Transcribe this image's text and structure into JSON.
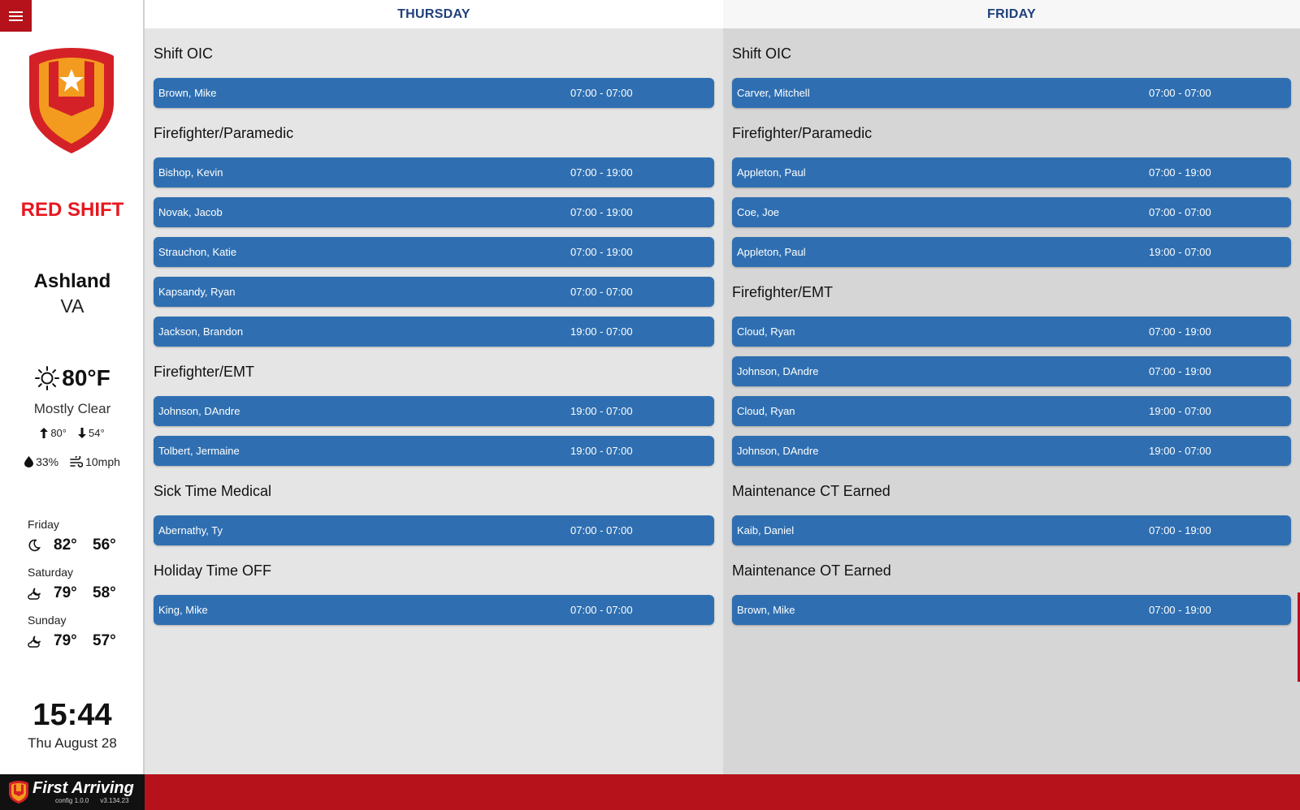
{
  "sidebar": {
    "shift_name": "RED SHIFT",
    "city": "Ashland",
    "state": "VA",
    "weather": {
      "icon": "sun-icon",
      "temp": "80°F",
      "condition": "Mostly Clear",
      "high": "80°",
      "low": "54°",
      "humidity": "33%",
      "wind": "10mph"
    },
    "forecast": [
      {
        "day": "Friday",
        "icon": "moon-icon",
        "high": "82°",
        "low": "56°"
      },
      {
        "day": "Saturday",
        "icon": "cloud-moon-icon",
        "high": "79°",
        "low": "58°"
      },
      {
        "day": "Sunday",
        "icon": "cloud-moon-icon",
        "high": "79°",
        "low": "57°"
      }
    ],
    "time": "15:44",
    "date": "Thu August 28"
  },
  "columns": [
    {
      "day": "THURSDAY",
      "groups": [
        {
          "title": "Shift OIC",
          "shifts": [
            {
              "name": "Brown, Mike",
              "time": "07:00 - 07:00"
            }
          ]
        },
        {
          "title": "Firefighter/Paramedic",
          "shifts": [
            {
              "name": "Bishop, Kevin",
              "time": "07:00 - 19:00"
            },
            {
              "name": "Novak, Jacob",
              "time": "07:00 - 19:00"
            },
            {
              "name": "Strauchon, Katie",
              "time": "07:00 - 19:00"
            },
            {
              "name": "Kapsandy, Ryan",
              "time": "07:00 - 07:00"
            },
            {
              "name": "Jackson, Brandon",
              "time": "19:00 - 07:00"
            }
          ]
        },
        {
          "title": "Firefighter/EMT",
          "shifts": [
            {
              "name": "Johnson, DAndre",
              "time": "19:00 - 07:00"
            },
            {
              "name": "Tolbert, Jermaine",
              "time": "19:00 - 07:00"
            }
          ]
        },
        {
          "title": "Sick Time Medical",
          "shifts": [
            {
              "name": "Abernathy, Ty",
              "time": "07:00 - 07:00"
            }
          ]
        },
        {
          "title": "Holiday Time OFF",
          "shifts": [
            {
              "name": "King, Mike",
              "time": "07:00 - 07:00"
            }
          ]
        }
      ]
    },
    {
      "day": "FRIDAY",
      "groups": [
        {
          "title": "Shift OIC",
          "shifts": [
            {
              "name": "Carver, Mitchell",
              "time": "07:00 - 07:00"
            }
          ]
        },
        {
          "title": "Firefighter/Paramedic",
          "shifts": [
            {
              "name": "Appleton, Paul",
              "time": "07:00 - 19:00"
            },
            {
              "name": "Coe, Joe",
              "time": "07:00 - 07:00"
            },
            {
              "name": "Appleton, Paul",
              "time": "19:00 - 07:00"
            }
          ]
        },
        {
          "title": "Firefighter/EMT",
          "shifts": [
            {
              "name": "Cloud, Ryan",
              "time": "07:00 - 19:00"
            },
            {
              "name": "Johnson, DAndre",
              "time": "07:00 - 19:00"
            },
            {
              "name": "Cloud, Ryan",
              "time": "19:00 - 07:00"
            },
            {
              "name": "Johnson, DAndre",
              "time": "19:00 - 07:00"
            }
          ]
        },
        {
          "title": "Maintenance CT Earned",
          "shifts": [
            {
              "name": "Kaib, Daniel",
              "time": "07:00 - 19:00"
            }
          ]
        },
        {
          "title": "Maintenance OT Earned",
          "shifts": [
            {
              "name": "Brown, Mike",
              "time": "07:00 - 19:00"
            }
          ]
        }
      ]
    }
  ],
  "footer": {
    "brand": "First Arriving",
    "config_version": "config 1.0.0",
    "app_version": "v3.134.23"
  },
  "colors": {
    "accent_red": "#b5121b",
    "shift_red": "#e8171f",
    "shift_bar_blue": "#2f6fb1",
    "header_blue": "#1f3f7a"
  }
}
